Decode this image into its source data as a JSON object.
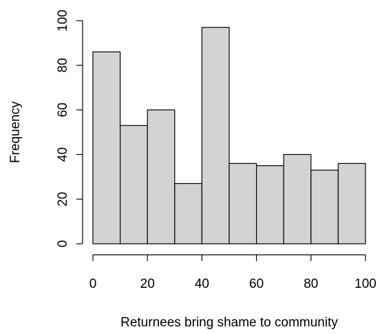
{
  "chart_data": {
    "type": "bar",
    "title": "",
    "xlabel": "Returnees bring shame to community",
    "ylabel": "Frequency",
    "bins": [
      {
        "from": 0,
        "to": 10,
        "count": 86
      },
      {
        "from": 10,
        "to": 20,
        "count": 53
      },
      {
        "from": 20,
        "to": 30,
        "count": 60
      },
      {
        "from": 30,
        "to": 40,
        "count": 27
      },
      {
        "from": 40,
        "to": 50,
        "count": 97
      },
      {
        "from": 50,
        "to": 60,
        "count": 36
      },
      {
        "from": 60,
        "to": 70,
        "count": 35
      },
      {
        "from": 70,
        "to": 80,
        "count": 40
      },
      {
        "from": 80,
        "to": 90,
        "count": 33
      },
      {
        "from": 90,
        "to": 100,
        "count": 36
      }
    ],
    "xlim": [
      0,
      100
    ],
    "ylim": [
      0,
      100
    ],
    "x_ticks": [
      "0",
      "20",
      "40",
      "60",
      "80",
      "100"
    ],
    "y_ticks": [
      "0",
      "20",
      "40",
      "60",
      "80",
      "100"
    ],
    "bar_fill": "#d3d3d3",
    "bar_stroke": "#000000",
    "grid": false,
    "legend": "none"
  }
}
